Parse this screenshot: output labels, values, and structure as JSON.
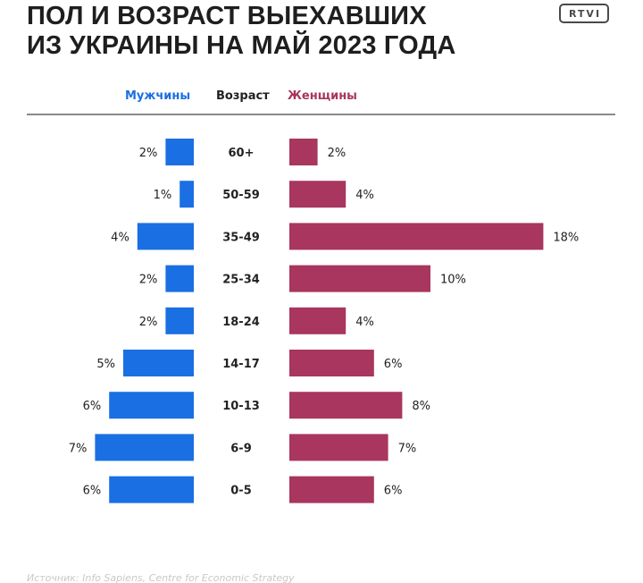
{
  "header": {
    "title_line1": "ПОЛ И ВОЗРАСТ ВЫЕХАВШИХ",
    "title_line2": "ИЗ УКРАИНЫ НА МАЙ 2023 ГОДА",
    "logo_text": "RTVI"
  },
  "legend": {
    "men": "Мужчины",
    "age": "Возраст",
    "women": "Женщины"
  },
  "colors": {
    "men": "#1a6fe3",
    "women": "#a8365e",
    "text": "#222222"
  },
  "chart_data": {
    "type": "bar",
    "categories": [
      "60+",
      "50-59",
      "35-49",
      "25-34",
      "18-24",
      "14-17",
      "10-13",
      "6-9",
      "0-5"
    ],
    "series": [
      {
        "name": "Мужчины",
        "values": [
          2,
          1,
          4,
          2,
          2,
          5,
          6,
          7,
          6
        ],
        "labels": [
          "2%",
          "1%",
          "4%",
          "2%",
          "2%",
          "5%",
          "6%",
          "7%",
          "6%"
        ]
      },
      {
        "name": "Женщины",
        "values": [
          2,
          4,
          18,
          10,
          4,
          6,
          8,
          7,
          6
        ],
        "labels": [
          "2%",
          "4%",
          "18%",
          "10%",
          "4%",
          "6%",
          "8%",
          "7%",
          "6%"
        ]
      }
    ],
    "orientation": "horizontal-pyramid",
    "unit": "%"
  },
  "footer": {
    "source": "Источник: Info Sapiens, Centre for Economic Strategy"
  }
}
